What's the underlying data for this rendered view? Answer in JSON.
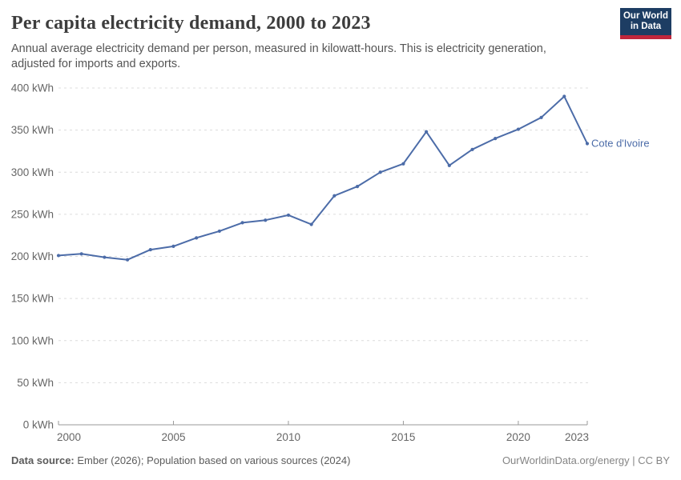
{
  "header": {
    "title": "Per capita electricity demand, 2000 to 2023",
    "subtitle": "Annual average electricity demand per person, measured in kilowatt-hours. This is electricity generation, adjusted for imports and exports.",
    "logo": {
      "line1": "Our World",
      "line2": "in Data",
      "bg_color": "#1d3d63",
      "accent_color": "#c0273c"
    }
  },
  "chart_data": {
    "type": "line",
    "title": "Per capita electricity demand, 2000 to 2023",
    "xlabel": "",
    "ylabel": "",
    "x": [
      2000,
      2001,
      2002,
      2003,
      2004,
      2005,
      2006,
      2007,
      2008,
      2009,
      2010,
      2011,
      2012,
      2013,
      2014,
      2015,
      2016,
      2017,
      2018,
      2019,
      2020,
      2021,
      2022,
      2023
    ],
    "series": [
      {
        "name": "Cote d'Ivoire",
        "color": "#4c6ca8",
        "values": [
          201,
          203,
          199,
          196,
          208,
          212,
          222,
          230,
          240,
          243,
          249,
          238,
          272,
          283,
          300,
          310,
          348,
          308,
          327,
          340,
          351,
          365,
          390,
          334
        ]
      }
    ],
    "ylim": [
      0,
      400
    ],
    "yticks": [
      0,
      50,
      100,
      150,
      200,
      250,
      300,
      350,
      400
    ],
    "ytick_suffix": " kWh",
    "xticks": [
      2000,
      2005,
      2010,
      2015,
      2020,
      2023
    ],
    "grid": "horizontal-dashed",
    "legend_position": "end-of-line-label",
    "colors": {
      "grid": "#dcdcdc",
      "axis": "#9a9a9a",
      "tick_text": "#666666"
    }
  },
  "footer": {
    "datasource_label": "Data source:",
    "datasource_text": " Ember (2026); Population based on various sources (2024)",
    "link_text": "OurWorldinData.org/energy | CC BY"
  }
}
